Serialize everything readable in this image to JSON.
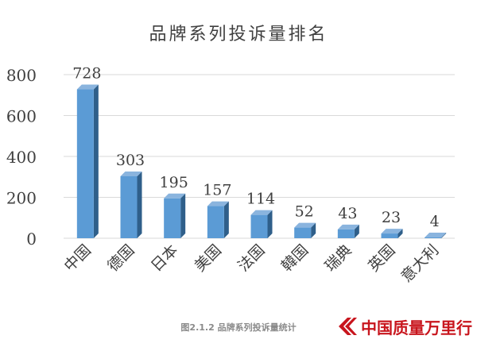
{
  "chart_data": {
    "type": "bar",
    "title": "品牌系列投诉量排名",
    "categories": [
      "中国",
      "德国",
      "日本",
      "美国",
      "法国",
      "韓国",
      "瑞典",
      "英国",
      "意大利"
    ],
    "values": [
      728,
      303,
      195,
      157,
      114,
      52,
      43,
      23,
      4
    ],
    "ylim": [
      0,
      800
    ],
    "yticks": [
      0,
      200,
      400,
      600,
      800
    ],
    "grid": true,
    "legend": "none",
    "bar_color": "#5b9bd5",
    "bar_side_color": "#2f5f8a",
    "bar_top_color": "#8ab4de",
    "gridline_color": "#d9d9d9"
  },
  "caption": "图2.1.2 品牌系列投诉量统计",
  "logo": {
    "text": "中国质量万里行",
    "accent_color": "#c8151d"
  }
}
